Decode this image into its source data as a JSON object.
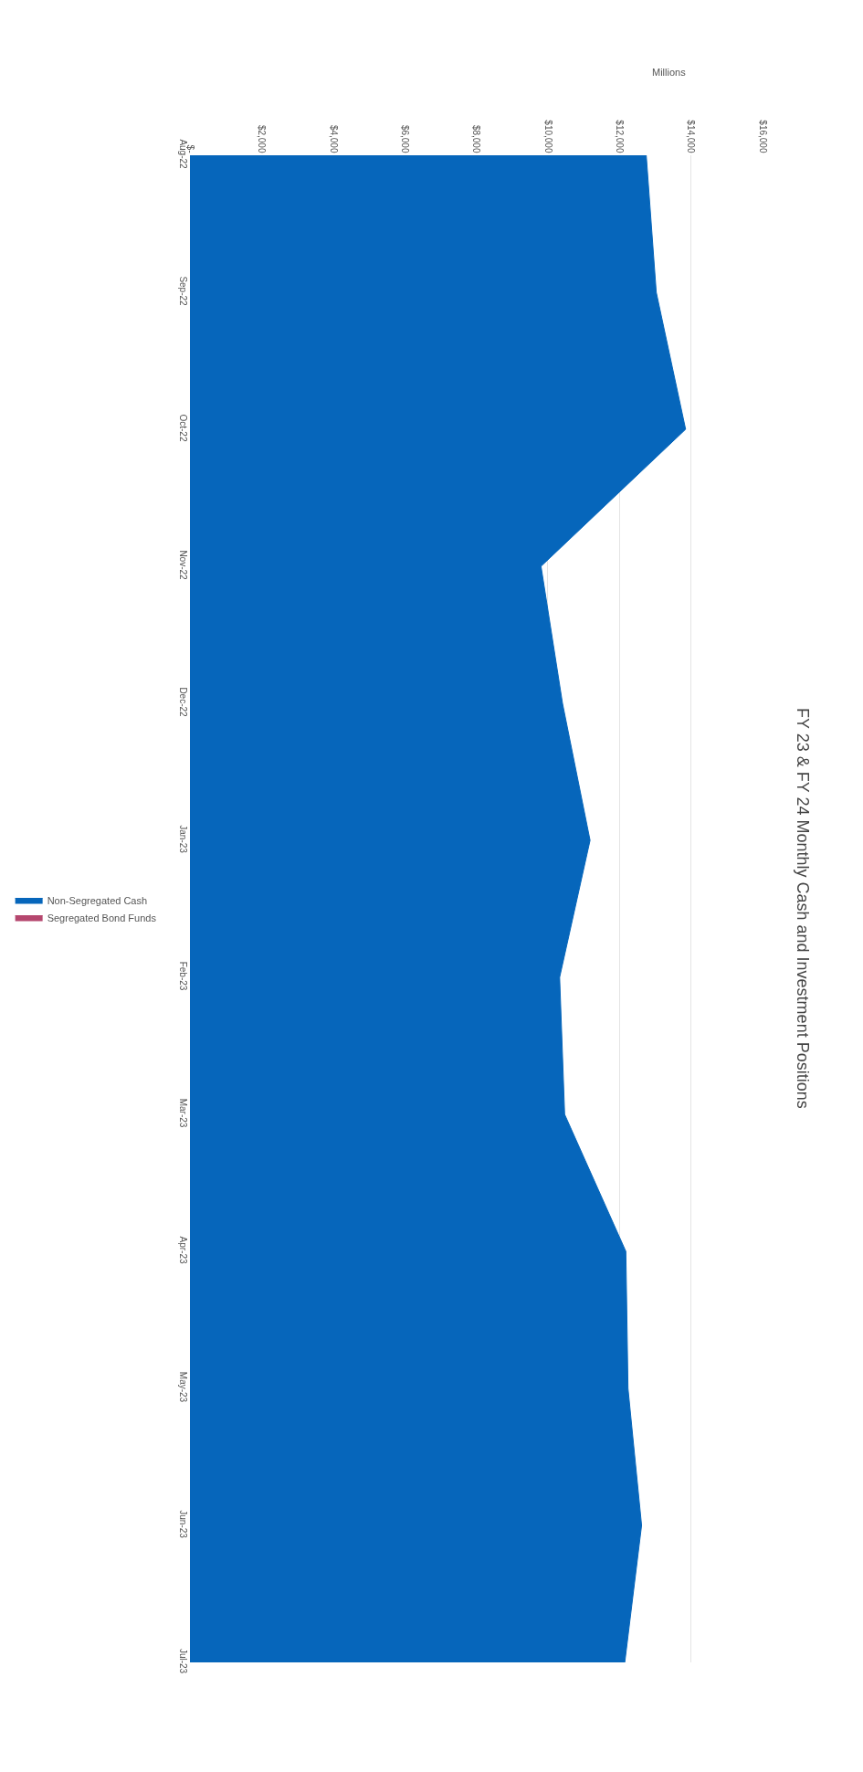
{
  "chart_data": {
    "type": "area",
    "orientation": "horizontal",
    "title": "FY 23 & FY 24 Monthly Cash and Investment Positions",
    "annotations": [
      "Millions"
    ],
    "categories": [
      "Aug-22",
      "Sep-22",
      "Oct-22",
      "Nov-22",
      "Dec-22",
      "Jan-23",
      "Feb-23",
      "Mar-23",
      "Apr-23",
      "May-23",
      "Jun-23",
      "Jul-23"
    ],
    "series": [
      {
        "name": "Non-Segregated Cash",
        "color": "#0666bb",
        "values": [
          12750,
          13030,
          13850,
          9810,
          10410,
          11180,
          10330,
          10470,
          12180,
          12240,
          12620,
          12150
        ]
      },
      {
        "name": "Segregated Bond Funds",
        "color": "#b5476e",
        "values": [
          null,
          null,
          null,
          null,
          null,
          null,
          null,
          null,
          null,
          null,
          null,
          null
        ]
      }
    ],
    "xlim": [
      0,
      16000
    ],
    "xticks": [
      {
        "value": 0,
        "label": "$-"
      },
      {
        "value": 2000,
        "label": "$2,000"
      },
      {
        "value": 4000,
        "label": "$4,000"
      },
      {
        "value": 6000,
        "label": "$6,000"
      },
      {
        "value": 8000,
        "label": "$8,000"
      },
      {
        "value": 10000,
        "label": "$10,000"
      },
      {
        "value": 12000,
        "label": "$12,000"
      },
      {
        "value": 14000,
        "label": "$14,000"
      },
      {
        "value": 16000,
        "label": "$16,000"
      }
    ],
    "grid": "x",
    "legend": "left"
  }
}
